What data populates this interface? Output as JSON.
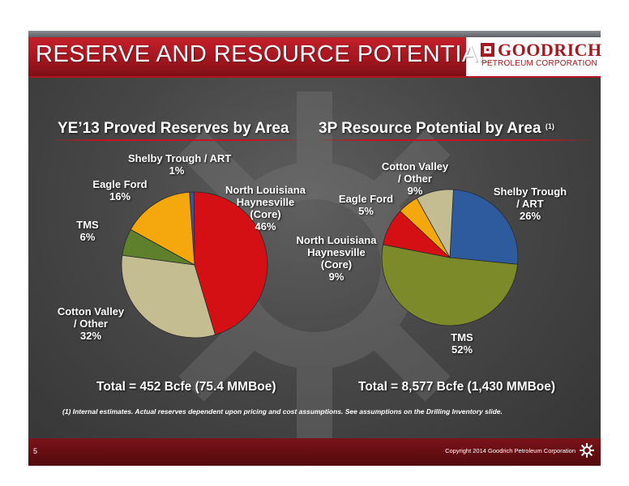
{
  "header": {
    "title": "RESERVE AND RESOURCE POTENTIAL",
    "logo_name": "GOODRICH",
    "logo_sub": "PETROLEUM CORPORATION"
  },
  "footnote": "(1) Internal estimates.  Actual reserves dependent upon pricing and cost assumptions.  See assumptions on the Drilling Inventory slide.",
  "footer": {
    "page_number": "5",
    "copyright": "Copyright 2014 Goodrich Petroleum Corporation"
  },
  "colors": {
    "brand_red": "#a51a20",
    "background": "#464646"
  },
  "chart_data": [
    {
      "type": "pie",
      "title": "YE’13 Proved Reserves by Area",
      "total_label": "Total = 452 Bcfe (75.4 MMBoe)",
      "slices": [
        {
          "name": "Shelby Trough / ART",
          "value": 1,
          "label": "Shelby Trough / ART\n1%",
          "color": "#2e5b9e"
        },
        {
          "name": "North Louisiana Haynesville (Core)",
          "value": 46,
          "label": "North Louisiana\nHaynesville\n(Core)\n46%",
          "color": "#d41015"
        },
        {
          "name": "Cotton Valley / Other",
          "value": 32,
          "label": "Cotton Valley\n/ Other\n32%",
          "color": "#c4bd92"
        },
        {
          "name": "TMS",
          "value": 6,
          "label": "TMS\n6%",
          "color": "#5e7f2c"
        },
        {
          "name": "Eagle Ford",
          "value": 16,
          "label": "Eagle Ford\n16%",
          "color": "#f5a80d"
        }
      ]
    },
    {
      "type": "pie",
      "title": "3P Resource Potential by Area",
      "title_note": "(1)",
      "total_label": "Total = 8,577 Bcfe (1,430 MMBoe)",
      "slices": [
        {
          "name": "Shelby Trough / ART",
          "value": 26,
          "label": "Shelby Trough\n/ ART\n26%",
          "color": "#2e5b9e"
        },
        {
          "name": "TMS",
          "value": 52,
          "label": "TMS\n52%",
          "color": "#7c8a2a"
        },
        {
          "name": "North Louisiana Haynesville (Core)",
          "value": 9,
          "label": "North Louisiana\nHaynesville\n(Core)\n9%",
          "color": "#d41015"
        },
        {
          "name": "Eagle Ford",
          "value": 5,
          "label": "Eagle Ford\n5%",
          "color": "#f5a80d"
        },
        {
          "name": "Cotton Valley / Other",
          "value": 9,
          "label": "Cotton Valley\n/ Other\n9%",
          "color": "#c4bd92"
        }
      ]
    }
  ]
}
